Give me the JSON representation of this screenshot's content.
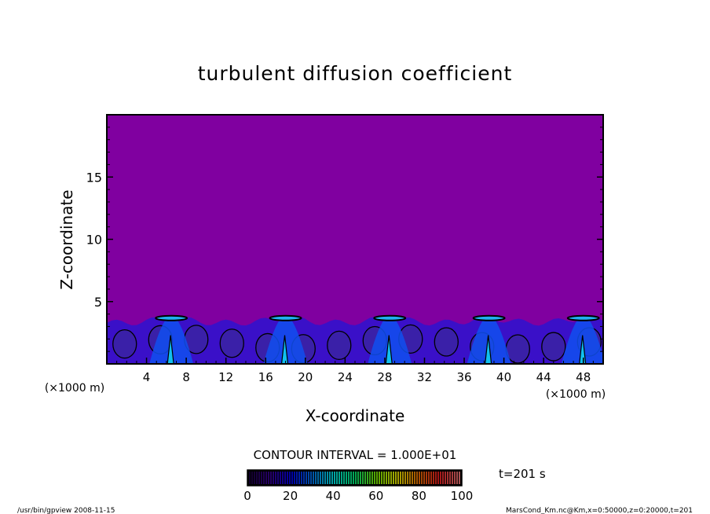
{
  "chart_data": {
    "type": "heatmap",
    "title": "turbulent diffusion coefficient",
    "xlabel": "X-coordinate",
    "ylabel": "Z-coordinate",
    "x_unit": "(×1000 m)",
    "y_unit": "(×1000 m)",
    "xlim": [
      0,
      50
    ],
    "ylim": [
      0,
      20
    ],
    "x_ticks": [
      4,
      8,
      12,
      16,
      20,
      24,
      28,
      32,
      36,
      40,
      44,
      48
    ],
    "y_ticks": [
      5,
      10,
      15
    ],
    "contour_interval": "CONTOUR INTERVAL = 1.000E+01",
    "colorbar": {
      "range": [
        0,
        100
      ],
      "tick_labels": [
        "0",
        "20",
        "40",
        "60",
        "80",
        "100"
      ],
      "colors": [
        "#1a0040",
        "#3a00a0",
        "#0000ff",
        "#0080ff",
        "#00ffff",
        "#00ff80",
        "#80ff00",
        "#ffff00",
        "#ff8000",
        "#ff2020",
        "#ff8080"
      ]
    },
    "field": {
      "background_color": "#8000a0",
      "boundary_layer_top_km": 3.8,
      "plume_centers_km": [
        6.5,
        18,
        28.5,
        38.5,
        48
      ]
    },
    "time_label": "t=201 s"
  },
  "footer": {
    "left": "/usr/bin/gpview  2008-11-15",
    "right": "MarsCond_Km.nc@Km,x=0:50000,z=0:20000,t=201"
  }
}
